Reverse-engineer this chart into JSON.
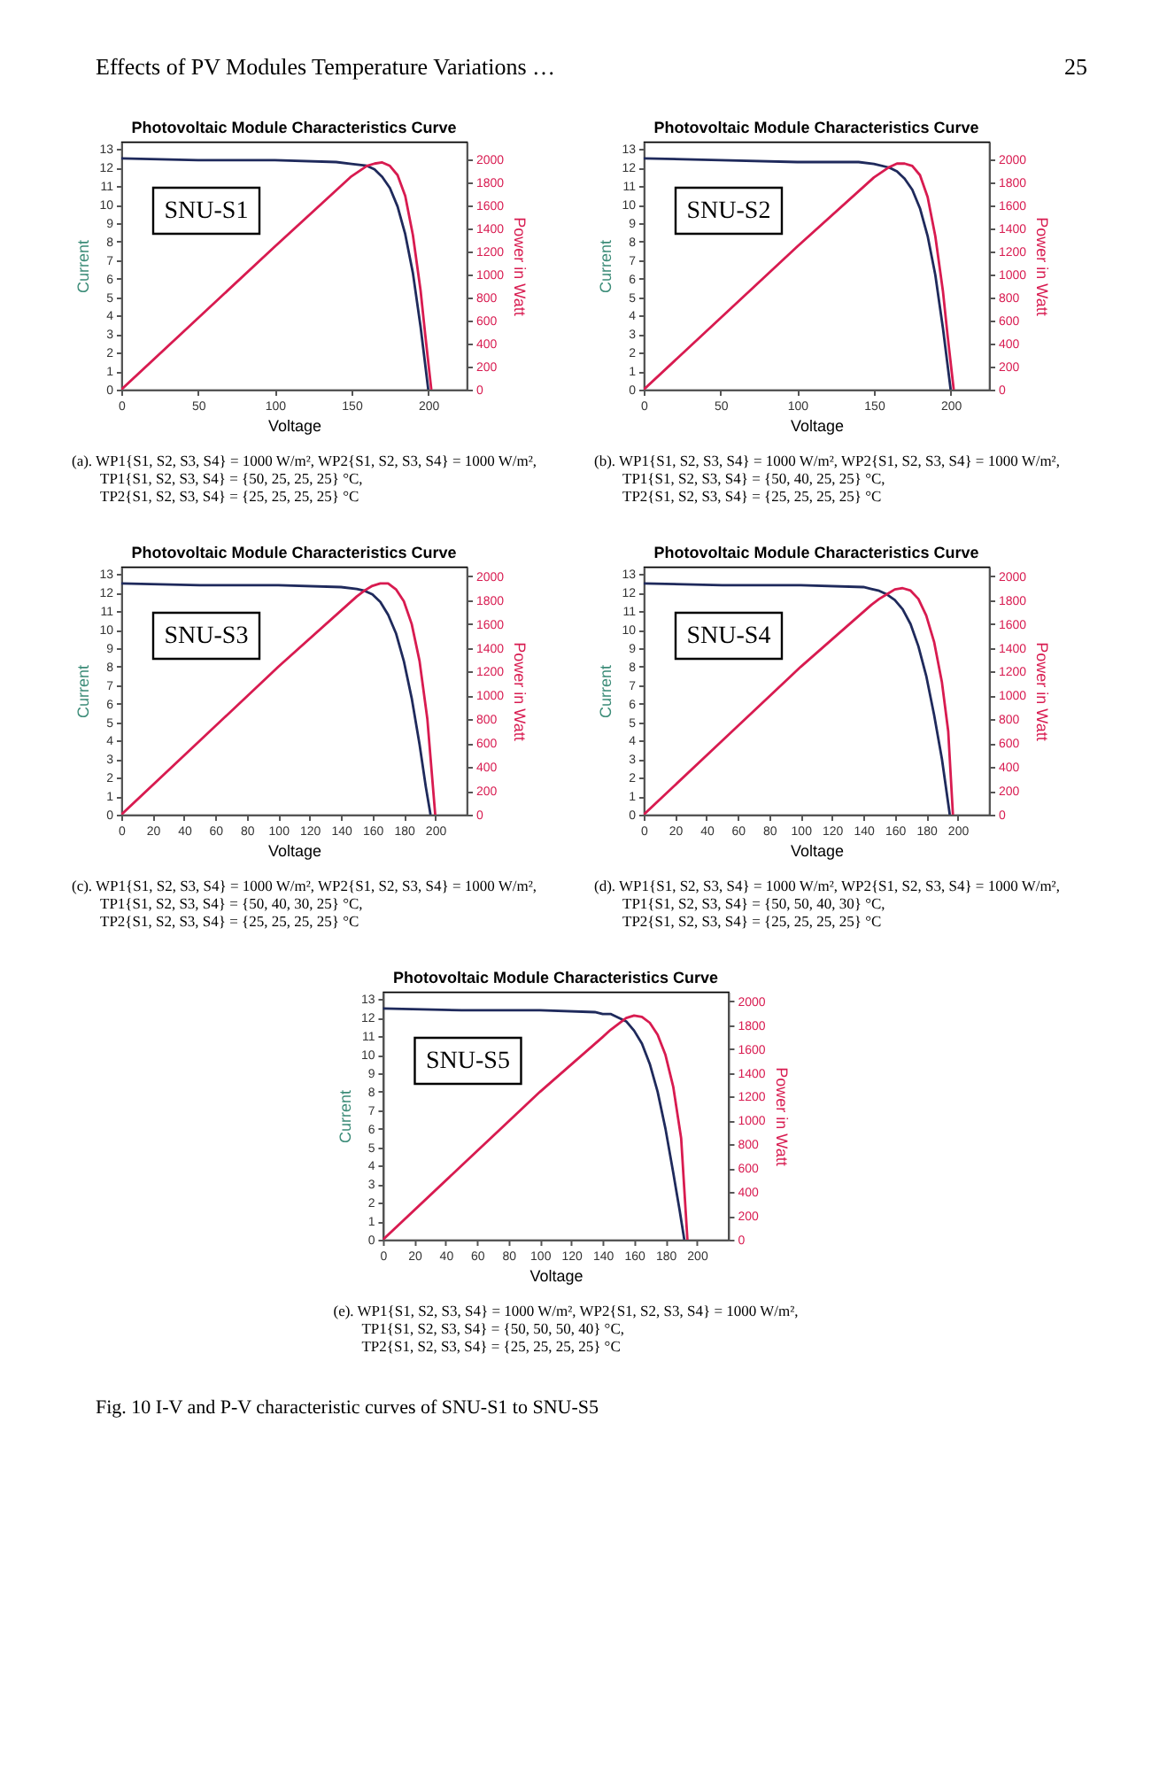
{
  "chart_data": [
    {
      "type": "line",
      "title": "Photovoltaic Module Characteristics Curve",
      "xlabel": "Voltage",
      "ylabel": "Current",
      "y2label": "Power in Watt",
      "xlim": [
        0,
        225
      ],
      "xticks": [
        0,
        50,
        100,
        150,
        200
      ],
      "ylim": [
        0,
        13.4
      ],
      "yticks": [
        0,
        1,
        2,
        3,
        4,
        5,
        6,
        7,
        8,
        9,
        10,
        11,
        12,
        13
      ],
      "y2lim": [
        0,
        2150
      ],
      "y2ticks": [
        0,
        200,
        400,
        600,
        800,
        1000,
        1200,
        1400,
        1600,
        1800,
        2000
      ],
      "grid": false,
      "series": [
        {
          "color": "#1f2a5c",
          "x": [
            0,
            50,
            100,
            140,
            150,
            160,
            165,
            170,
            175,
            180,
            185,
            190,
            195,
            200
          ],
          "values": [
            12.5,
            12.4,
            12.4,
            12.3,
            12.2,
            12.1,
            11.9,
            11.5,
            10.9,
            9.9,
            8.4,
            6.3,
            3.4,
            0
          ]
        },
        {
          "color": "#d81b50",
          "axis": "y2",
          "x": [
            0,
            50,
            100,
            150,
            160,
            165,
            170,
            175,
            180,
            185,
            190,
            195,
            198,
            202
          ],
          "values": [
            0,
            620,
            1240,
            1850,
            1940,
            1960,
            1970,
            1940,
            1860,
            1680,
            1340,
            860,
            480,
            0
          ]
        }
      ],
      "annotations": [
        "SNU-S1",
        "(a). WP1{S1, S2, S3, S4} = 1000 W/m², WP2{S1, S2, S3, S4} = 1000 W/m²,",
        "TP1{S1, S2, S3, S4} = {50, 25, 25, 25} °C,",
        "TP2{S1, S2, S3, S4} = {25, 25, 25, 25} °C",
        "Effects of PV Modules Temperature Variations …",
        "25"
      ]
    },
    {
      "type": "line",
      "title": "Photovoltaic Module Characteristics Curve",
      "xlabel": "Voltage",
      "ylabel": "Current",
      "y2label": "Power in Watt",
      "xlim": [
        0,
        225
      ],
      "xticks": [
        0,
        50,
        100,
        150,
        200
      ],
      "ylim": [
        0,
        13.4
      ],
      "yticks": [
        0,
        1,
        2,
        3,
        4,
        5,
        6,
        7,
        8,
        9,
        10,
        11,
        12,
        13
      ],
      "y2lim": [
        0,
        2150
      ],
      "y2ticks": [
        0,
        200,
        400,
        600,
        800,
        1000,
        1200,
        1400,
        1600,
        1800,
        2000
      ],
      "grid": false,
      "series": [
        {
          "color": "#1f2a5c",
          "x": [
            0,
            50,
            100,
            140,
            150,
            160,
            165,
            170,
            175,
            180,
            185,
            190,
            195,
            200
          ],
          "values": [
            12.5,
            12.4,
            12.3,
            12.3,
            12.2,
            12.0,
            11.8,
            11.4,
            10.8,
            9.8,
            8.3,
            6.2,
            3.3,
            0
          ]
        },
        {
          "color": "#d81b50",
          "axis": "y2",
          "x": [
            0,
            50,
            100,
            150,
            160,
            165,
            170,
            175,
            180,
            185,
            190,
            195,
            198,
            202
          ],
          "values": [
            0,
            620,
            1240,
            1840,
            1930,
            1960,
            1960,
            1940,
            1860,
            1670,
            1330,
            850,
            470,
            0
          ]
        }
      ],
      "annotations": [
        "SNU-S2",
        "(b). WP1{S1, S2, S3, S4} = 1000 W/m², WP2{S1, S2, S3, S4} = 1000 W/m²,",
        "TP1{S1, S2, S3, S4} = {50, 40, 25, 25} °C,",
        "TP2{S1, S2, S3, S4} = {25, 25, 25, 25} °C"
      ]
    },
    {
      "type": "line",
      "title": "Photovoltaic Module Characteristics Curve",
      "xlabel": "Voltage",
      "ylabel": "Current",
      "y2label": "Power in Watt",
      "xlim": [
        0,
        220
      ],
      "xticks": [
        0,
        20,
        40,
        60,
        80,
        100,
        120,
        140,
        160,
        180,
        200
      ],
      "ylim": [
        0,
        13.4
      ],
      "yticks": [
        0,
        1,
        2,
        3,
        4,
        5,
        6,
        7,
        8,
        9,
        10,
        11,
        12,
        13
      ],
      "y2lim": [
        0,
        2080
      ],
      "y2ticks": [
        0,
        200,
        400,
        600,
        800,
        1000,
        1200,
        1400,
        1600,
        1800,
        2000
      ],
      "grid": false,
      "series": [
        {
          "color": "#1f2a5c",
          "x": [
            0,
            50,
            100,
            140,
            150,
            155,
            160,
            165,
            170,
            175,
            180,
            185,
            190,
            194,
            197
          ],
          "values": [
            12.5,
            12.4,
            12.4,
            12.3,
            12.2,
            12.1,
            11.9,
            11.5,
            10.8,
            9.8,
            8.3,
            6.3,
            3.8,
            1.5,
            0
          ]
        },
        {
          "color": "#d81b50",
          "axis": "y2",
          "x": [
            0,
            50,
            100,
            150,
            155,
            160,
            165,
            170,
            175,
            180,
            185,
            190,
            195,
            200
          ],
          "values": [
            0,
            620,
            1240,
            1830,
            1880,
            1920,
            1940,
            1940,
            1890,
            1790,
            1600,
            1290,
            800,
            0
          ]
        }
      ],
      "annotations": [
        "SNU-S3",
        "(c). WP1{S1, S2, S3, S4} = 1000 W/m², WP2{S1, S2, S3, S4} = 1000 W/m²,",
        "TP1{S1, S2, S3, S4} = {50, 40, 30, 25} °C,",
        "TP2{S1, S2, S3, S4} = {25, 25, 25, 25} °C"
      ]
    },
    {
      "type": "line",
      "title": "Photovoltaic Module Characteristics Curve",
      "xlabel": "Voltage",
      "ylabel": "Current",
      "y2label": "Power in Watt",
      "xlim": [
        0,
        220
      ],
      "xticks": [
        0,
        20,
        40,
        60,
        80,
        100,
        120,
        140,
        160,
        180,
        200
      ],
      "ylim": [
        0,
        13.4
      ],
      "yticks": [
        0,
        1,
        2,
        3,
        4,
        5,
        6,
        7,
        8,
        9,
        10,
        11,
        12,
        13
      ],
      "y2lim": [
        0,
        2080
      ],
      "y2ticks": [
        0,
        200,
        400,
        600,
        800,
        1000,
        1200,
        1400,
        1600,
        1800,
        2000
      ],
      "grid": false,
      "series": [
        {
          "color": "#1f2a5c",
          "x": [
            0,
            50,
            100,
            140,
            145,
            150,
            155,
            160,
            165,
            170,
            175,
            180,
            185,
            190,
            195
          ],
          "values": [
            12.5,
            12.4,
            12.4,
            12.3,
            12.2,
            12.1,
            11.9,
            11.6,
            11.1,
            10.3,
            9.1,
            7.5,
            5.4,
            3.0,
            0
          ]
        },
        {
          "color": "#d81b50",
          "axis": "y2",
          "x": [
            0,
            50,
            100,
            145,
            150,
            155,
            160,
            165,
            170,
            175,
            180,
            185,
            190,
            194,
            197
          ],
          "values": [
            0,
            620,
            1240,
            1760,
            1810,
            1850,
            1890,
            1900,
            1880,
            1810,
            1670,
            1450,
            1110,
            700,
            0
          ]
        }
      ],
      "annotations": [
        "SNU-S4",
        "(d). WP1{S1, S2, S3, S4} = 1000 W/m², WP2{S1, S2, S3, S4} = 1000 W/m²,",
        "TP1{S1, S2, S3, S4} = {50, 50, 40, 30} °C,",
        "TP2{S1, S2, S3, S4} = {25, 25, 25, 25} °C"
      ]
    },
    {
      "type": "line",
      "title": "Photovoltaic Module Characteristics Curve",
      "xlabel": "Voltage",
      "ylabel": "Current",
      "y2label": "Power in Watt",
      "xlim": [
        0,
        220
      ],
      "xticks": [
        0,
        20,
        40,
        60,
        80,
        100,
        120,
        140,
        160,
        180,
        200
      ],
      "ylim": [
        0,
        13.4
      ],
      "yticks": [
        0,
        1,
        2,
        3,
        4,
        5,
        6,
        7,
        8,
        9,
        10,
        11,
        12,
        13
      ],
      "y2lim": [
        0,
        2080
      ],
      "y2ticks": [
        0,
        200,
        400,
        600,
        800,
        1000,
        1200,
        1400,
        1600,
        1800,
        2000
      ],
      "grid": false,
      "series": [
        {
          "color": "#1f2a5c",
          "x": [
            0,
            50,
            100,
            135,
            140,
            145,
            150,
            155,
            160,
            165,
            170,
            175,
            180,
            185,
            189,
            192
          ],
          "values": [
            12.5,
            12.4,
            12.4,
            12.3,
            12.2,
            12.2,
            12.0,
            11.8,
            11.3,
            10.6,
            9.5,
            8.0,
            6.0,
            3.6,
            1.6,
            0
          ]
        },
        {
          "color": "#d81b50",
          "axis": "y2",
          "x": [
            0,
            50,
            100,
            140,
            145,
            150,
            155,
            160,
            165,
            170,
            175,
            180,
            185,
            190,
            194
          ],
          "values": [
            0,
            620,
            1240,
            1700,
            1760,
            1810,
            1860,
            1880,
            1870,
            1820,
            1720,
            1550,
            1280,
            850,
            0
          ]
        }
      ],
      "annotations": [
        "SNU-S5",
        "(e). WP1{S1, S2, S3, S4} = 1000 W/m², WP2{S1, S2, S3, S4} = 1000 W/m²,",
        "TP1{S1, S2, S3, S4} = {50, 50, 50, 40} °C,",
        "TP2{S1, S2, S3, S4} = {25, 25, 25, 25} °C",
        "Fig. 10 I-V and P-V characteristic curves of SNU-S1 to SNU-S5"
      ]
    }
  ]
}
